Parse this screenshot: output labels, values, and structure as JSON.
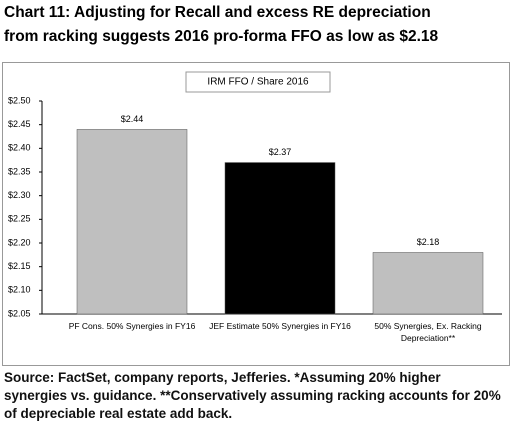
{
  "chart_data": {
    "type": "bar",
    "title": [
      "Chart 11: Adjusting for Recall and excess RE depreciation",
      "from racking suggests 2016 pro-forma FFO as low as $2.18"
    ],
    "subtitle": "IRM FFO / Share 2016",
    "categories": [
      "PF Cons. 50% Synergies in FY16",
      "JEF Estimate 50% Synergies in FY16",
      "50% Synergies, Ex. Racking Depreciation**"
    ],
    "values": [
      2.44,
      2.37,
      2.18
    ],
    "value_labels": [
      "$2.44",
      "$2.37",
      "$2.18"
    ],
    "colors": [
      "#bfbfbf",
      "#000000",
      "#bfbfbf"
    ],
    "ylim": [
      2.05,
      2.5
    ],
    "yticks": [
      {
        "value": 2.05,
        "label": "$2.05"
      },
      {
        "value": 2.1,
        "label": "$2.10"
      },
      {
        "value": 2.15,
        "label": "$2.15"
      },
      {
        "value": 2.2,
        "label": "$2.20"
      },
      {
        "value": 2.25,
        "label": "$2.25"
      },
      {
        "value": 2.3,
        "label": "$2.30"
      },
      {
        "value": 2.35,
        "label": "$2.35"
      },
      {
        "value": 2.4,
        "label": "$2.40"
      },
      {
        "value": 2.45,
        "label": "$2.45"
      },
      {
        "value": 2.5,
        "label": "$2.50"
      }
    ],
    "grid": false,
    "source": "Source: FactSet, company reports, Jefferies. *Assuming 20% higher synergies vs. guidance. **Conservatively assuming racking accounts for 20% of depreciable real estate add back."
  }
}
